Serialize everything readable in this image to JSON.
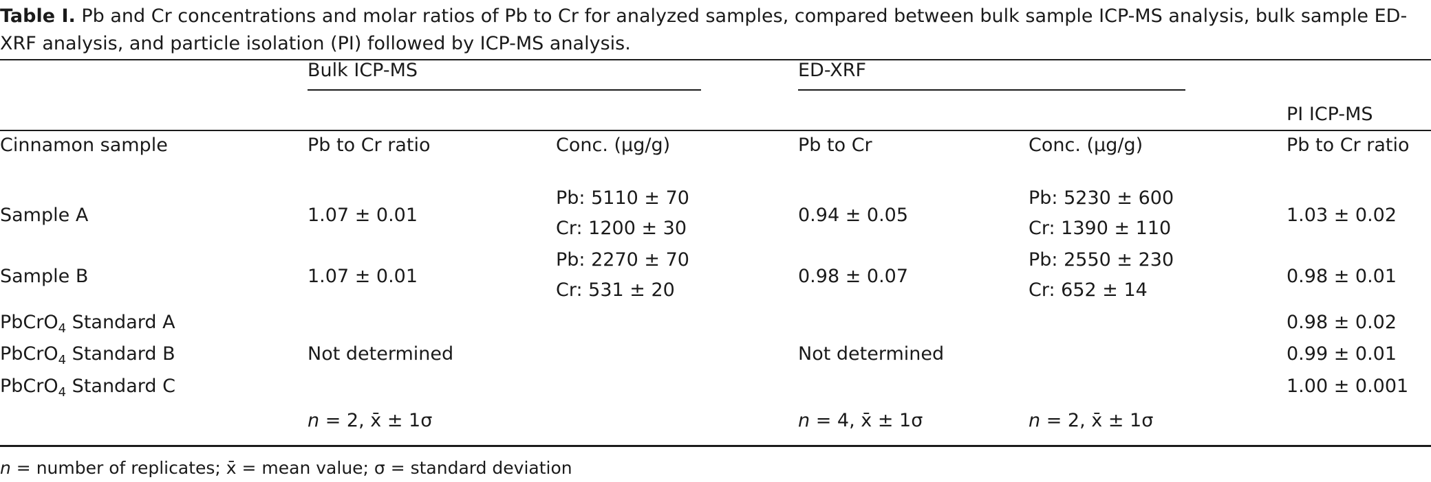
{
  "caption": {
    "label": "Table I.",
    "text": "Pb and Cr concentrations and molar ratios of Pb to Cr for analyzed samples, compared between bulk sample ICP-MS analysis, bulk sample ED-XRF analysis, and particle isolation (PI) followed by ICP-MS analysis."
  },
  "headers": {
    "group_bulk": "Bulk ICP-MS",
    "group_xrf": "ED-XRF",
    "group_pi": "PI ICP-MS",
    "col_sample": "Cinnamon sample",
    "col_bulk_ratio": "Pb to Cr ratio",
    "col_bulk_conc": "Conc. (μg/g)",
    "col_xrf_ratio": "Pb to Cr",
    "col_xrf_conc": "Conc. (μg/g)",
    "col_pi_ratio": "Pb to Cr ratio"
  },
  "rows": [
    {
      "sample": "Sample A",
      "bulk_ratio": "1.07 ± 0.01",
      "bulk_pb": "Pb: 5110 ± 70",
      "bulk_cr": "Cr: 1200 ± 30",
      "xrf_ratio": "0.94 ± 0.05",
      "xrf_pb": "Pb: 5230 ± 600",
      "xrf_cr": "Cr: 1390 ± 110",
      "pi_ratio": "1.03 ± 0.02"
    },
    {
      "sample": "Sample B",
      "bulk_ratio": "1.07 ± 0.01",
      "bulk_pb": "Pb: 2270 ± 70",
      "bulk_cr": "Cr: 531 ± 20",
      "xrf_ratio": "0.98 ± 0.07",
      "xrf_pb": "Pb: 2550 ± 230",
      "xrf_cr": "Cr: 652 ± 14",
      "pi_ratio": "0.98 ± 0.01"
    },
    {
      "sample_prefix": "PbCrO",
      "sample_sub": "4",
      "sample_suffix": " Standard A",
      "pi_ratio": "0.98 ± 0.02"
    },
    {
      "sample_prefix": "PbCrO",
      "sample_sub": "4",
      "sample_suffix": " Standard B",
      "pi_ratio": "0.99 ± 0.01"
    },
    {
      "sample_prefix": "PbCrO",
      "sample_sub": "4",
      "sample_suffix": " Standard C",
      "pi_ratio": "1.00 ± 0.001"
    }
  ],
  "not_determined": {
    "bulk": "Not determined",
    "xrf": "Not determined"
  },
  "stats_row": {
    "bulk_n": "n",
    "bulk_rest": " = 2, x̄ ± 1σ",
    "xrf_n": "n",
    "xrf_rest": " = 4, x̄ ± 1σ",
    "xrf_conc_n": "n",
    "xrf_conc_rest": " = 2, x̄ ± 1σ"
  },
  "footnote": {
    "n": "n",
    "rest": " = number of replicates; x̄ = mean value; σ = standard deviation"
  }
}
